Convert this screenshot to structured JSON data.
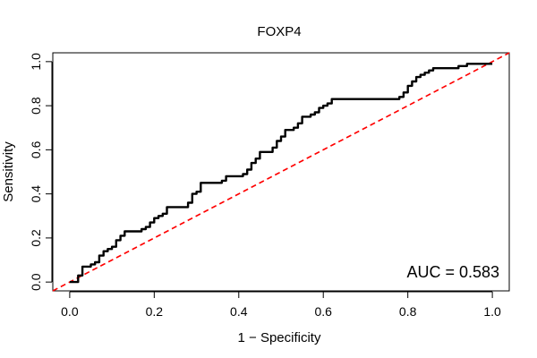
{
  "chart_data": {
    "type": "line",
    "title": "FOXP4",
    "xlabel": "1 − Specificity",
    "ylabel": "Sensitivity",
    "xlim": [
      -0.04,
      1.04
    ],
    "ylim": [
      -0.04,
      1.04
    ],
    "x_ticks": [
      "0.0",
      "0.2",
      "0.4",
      "0.6",
      "0.8",
      "1.0"
    ],
    "y_ticks": [
      "0.0",
      "0.2",
      "0.4",
      "0.6",
      "0.8",
      "1.0"
    ],
    "grid": false,
    "annotation": "AUC = 0.583",
    "series": [
      {
        "style": "step",
        "color": "#000000",
        "x": [
          0.0,
          0.01,
          0.02,
          0.03,
          0.04,
          0.05,
          0.06,
          0.07,
          0.08,
          0.09,
          0.1,
          0.11,
          0.12,
          0.13,
          0.14,
          0.15,
          0.16,
          0.17,
          0.18,
          0.19,
          0.2,
          0.21,
          0.22,
          0.23,
          0.24,
          0.25,
          0.26,
          0.27,
          0.28,
          0.29,
          0.3,
          0.31,
          0.32,
          0.33,
          0.34,
          0.35,
          0.36,
          0.37,
          0.38,
          0.39,
          0.4,
          0.41,
          0.42,
          0.43,
          0.44,
          0.45,
          0.46,
          0.47,
          0.48,
          0.49,
          0.5,
          0.51,
          0.52,
          0.53,
          0.54,
          0.55,
          0.56,
          0.57,
          0.58,
          0.59,
          0.6,
          0.61,
          0.62,
          0.63,
          0.64,
          0.65,
          0.66,
          0.67,
          0.68,
          0.7,
          0.72,
          0.74,
          0.76,
          0.78,
          0.79,
          0.8,
          0.81,
          0.82,
          0.83,
          0.84,
          0.85,
          0.86,
          0.87,
          0.88,
          0.9,
          0.92,
          0.94,
          0.96,
          0.98,
          1.0
        ],
        "y": [
          0.0,
          0.0,
          0.03,
          0.07,
          0.07,
          0.08,
          0.09,
          0.12,
          0.14,
          0.15,
          0.16,
          0.19,
          0.21,
          0.23,
          0.23,
          0.23,
          0.23,
          0.24,
          0.25,
          0.27,
          0.29,
          0.3,
          0.31,
          0.34,
          0.34,
          0.34,
          0.34,
          0.34,
          0.36,
          0.4,
          0.41,
          0.45,
          0.45,
          0.45,
          0.45,
          0.45,
          0.46,
          0.48,
          0.48,
          0.48,
          0.48,
          0.49,
          0.51,
          0.54,
          0.56,
          0.59,
          0.59,
          0.59,
          0.61,
          0.64,
          0.66,
          0.69,
          0.69,
          0.7,
          0.72,
          0.75,
          0.75,
          0.76,
          0.77,
          0.79,
          0.8,
          0.81,
          0.83,
          0.83,
          0.83,
          0.83,
          0.83,
          0.83,
          0.83,
          0.83,
          0.83,
          0.83,
          0.83,
          0.84,
          0.86,
          0.89,
          0.91,
          0.93,
          0.94,
          0.95,
          0.96,
          0.97,
          0.97,
          0.97,
          0.97,
          0.98,
          0.99,
          0.99,
          0.99,
          0.99
        ]
      },
      {
        "style": "dashed",
        "color": "#ff0000",
        "x": [
          -0.04,
          1.04
        ],
        "y": [
          -0.04,
          1.04
        ]
      }
    ]
  }
}
